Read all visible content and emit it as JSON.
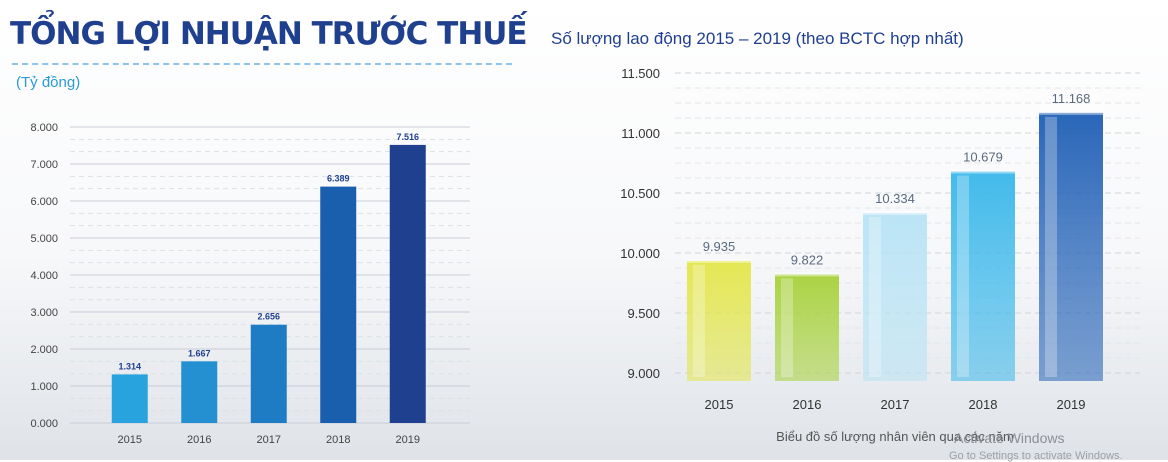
{
  "left_panel": {
    "title": "TỔNG LỢI NHUẬN TRƯỚC THUẾ",
    "unit": "(Tỷ đồng)"
  },
  "right_panel": {
    "title": "Số lượng lao động 2015 – 2019 (theo BCTC hợp nhất)"
  },
  "watermark": {
    "text": "Activate Windows",
    "subtext": "Go to Settings to activate Windows."
  },
  "chart_data": [
    {
      "type": "bar",
      "title": "TỔNG LỢI NHUẬN TRƯỚC THUẾ",
      "ylabel": "(Tỷ đồng)",
      "categories": [
        "2015",
        "2016",
        "2017",
        "2018",
        "2019"
      ],
      "values": [
        1314,
        1667,
        2656,
        6389,
        7516
      ],
      "data_labels": [
        "1.314",
        "1.667",
        "2.656",
        "6.389",
        "7.516"
      ],
      "ylim": [
        0,
        8000
      ],
      "yticks": [
        0,
        1000,
        2000,
        3000,
        4000,
        5000,
        6000,
        7000,
        8000
      ],
      "ytick_labels": [
        "0.000",
        "1.000",
        "2.000",
        "3.000",
        "4.000",
        "5.000",
        "6.000",
        "7.000",
        "8.000"
      ],
      "grid": true,
      "bar_colors": [
        "#29a3de",
        "#2590d1",
        "#1e7cc4",
        "#1a5fae",
        "#1f3f8f"
      ]
    },
    {
      "type": "bar",
      "title": "Số lượng lao động 2015 – 2019 (theo BCTC hợp nhất)",
      "xlabel": "Biểu đồ số lượng nhân viên qua các năm",
      "categories": [
        "2015",
        "2016",
        "2017",
        "2018",
        "2019"
      ],
      "values": [
        9935,
        9822,
        10334,
        10679,
        11168
      ],
      "data_labels": [
        "9.935",
        "9.822",
        "10.334",
        "10.679",
        "11.168"
      ],
      "ylim": [
        9000,
        11500
      ],
      "yticks": [
        9000,
        9500,
        10000,
        10500,
        11000,
        11500
      ],
      "ytick_labels": [
        "9.000",
        "9.500",
        "10.000",
        "10.500",
        "11.000",
        "11.500"
      ],
      "grid": true,
      "bar_colors": [
        "#e3e64a",
        "#a7d13a",
        "#b7e3f5",
        "#39b7ea",
        "#1f5fb5"
      ]
    }
  ]
}
